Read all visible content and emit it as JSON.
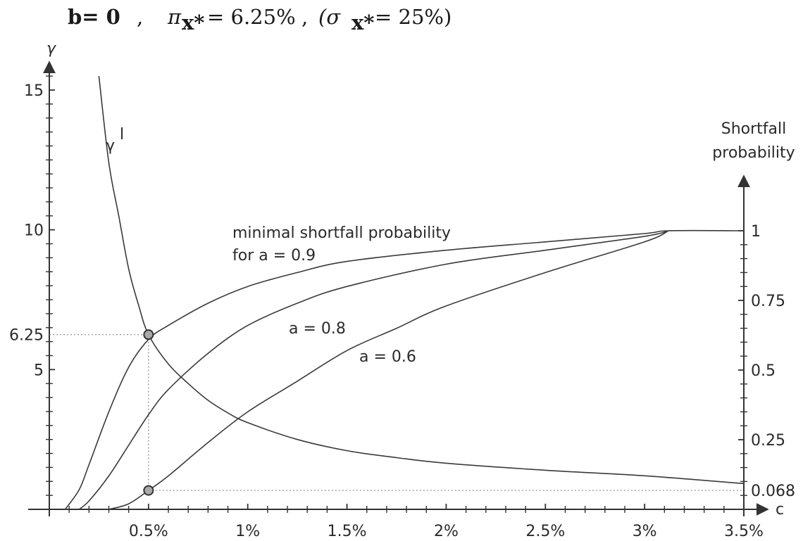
{
  "header": {
    "b_part": "b= 0",
    "pi_part": "π",
    "pi_sub": "x*",
    "pi_value": "= 6.25%",
    "sigma_open": "(σ",
    "sigma_sub": "x*",
    "sigma_value": "= 25%)",
    "sep": ","
  },
  "chart_data": {
    "type": "line",
    "xlabel": "c",
    "ylabel_left": "γ",
    "ylabel_right": [
      "Shortfall",
      "probability"
    ],
    "xlim": [
      0,
      3.5
    ],
    "ylim_left": [
      0,
      15
    ],
    "ylim_right": [
      0,
      1
    ],
    "x_ticks": [
      {
        "value": 0.5,
        "label": "0.5%"
      },
      {
        "value": 1.0,
        "label": "1%"
      },
      {
        "value": 1.5,
        "label": "1.5%"
      },
      {
        "value": 2.0,
        "label": "2%"
      },
      {
        "value": 2.5,
        "label": "2.5%"
      },
      {
        "value": 3.0,
        "label": "3%"
      },
      {
        "value": 3.5,
        "label": "3.5%"
      }
    ],
    "y_left_ticks": [
      {
        "value": 5,
        "label": "5"
      },
      {
        "value": 6.25,
        "label": "6.25"
      },
      {
        "value": 10,
        "label": "10"
      },
      {
        "value": 15,
        "label": "15"
      }
    ],
    "y_right_ticks": [
      {
        "value": 0.068,
        "label": "0.068"
      },
      {
        "value": 0.25,
        "label": "0.25"
      },
      {
        "value": 0.5,
        "label": "0.5"
      },
      {
        "value": 0.75,
        "label": "0.75"
      },
      {
        "value": 1,
        "label": "1"
      }
    ],
    "series": [
      {
        "name": "γ",
        "name_sup": "l",
        "axis": "left",
        "x": [
          0.25,
          0.3,
          0.35,
          0.4,
          0.45,
          0.5,
          0.6,
          0.7,
          0.8,
          0.9,
          1.0,
          1.25,
          1.5,
          1.75,
          2.0,
          2.5,
          3.0,
          3.5
        ],
        "y": [
          15.5,
          12.4,
          10.5,
          8.6,
          7.3,
          6.25,
          5.2,
          4.5,
          3.9,
          3.45,
          3.1,
          2.5,
          2.1,
          1.85,
          1.65,
          1.4,
          1.2,
          0.92
        ]
      },
      {
        "name": "minimal shortfall probability for a = 0.9",
        "axis": "right",
        "x": [
          0.08,
          0.15,
          0.2,
          0.3,
          0.4,
          0.5,
          0.6,
          0.8,
          1.0,
          1.25,
          1.5,
          2.0,
          2.5,
          3.0,
          3.12,
          3.5
        ],
        "y": [
          0.0,
          0.07,
          0.16,
          0.35,
          0.51,
          0.61,
          0.66,
          0.74,
          0.8,
          0.85,
          0.89,
          0.93,
          0.96,
          0.99,
          1.0,
          1.0
        ]
      },
      {
        "name": "a = 0.8",
        "axis": "right",
        "x": [
          0.15,
          0.2,
          0.3,
          0.4,
          0.5,
          0.6,
          0.8,
          1.0,
          1.25,
          1.5,
          2.0,
          2.5,
          3.0,
          3.12
        ],
        "y": [
          0.0,
          0.03,
          0.12,
          0.23,
          0.34,
          0.43,
          0.56,
          0.66,
          0.74,
          0.8,
          0.88,
          0.93,
          0.98,
          1.0
        ]
      },
      {
        "name": "a = 0.6",
        "axis": "right",
        "x": [
          0.3,
          0.4,
          0.5,
          0.6,
          0.8,
          1.0,
          1.25,
          1.5,
          1.75,
          2.0,
          2.5,
          3.0,
          3.12
        ],
        "y": [
          0.0,
          0.02,
          0.068,
          0.12,
          0.24,
          0.35,
          0.46,
          0.57,
          0.65,
          0.73,
          0.85,
          0.96,
          1.0
        ]
      }
    ],
    "annotations": {
      "gamma_label": "γ",
      "gamma_sup": "l",
      "min_line1": "minimal shortfall probability",
      "min_line2": "for a = 0.9",
      "a08": "a = 0.8",
      "a06": "a = 0.6"
    },
    "markers": [
      {
        "x": 0.5,
        "y": 6.25,
        "axis": "left"
      },
      {
        "x": 0.5,
        "y": 0.068,
        "axis": "right"
      }
    ],
    "guides": [
      {
        "type": "h",
        "axis": "left",
        "y": 6.25,
        "x_from": 0,
        "x_to": 0.5
      },
      {
        "type": "v",
        "x": 0.5,
        "y_from_left": 6.25,
        "y_to_right": 0.068
      },
      {
        "type": "h",
        "axis": "right",
        "y": 0.068,
        "x_from": 0.5,
        "x_to": 3.5
      }
    ],
    "grid": false
  }
}
